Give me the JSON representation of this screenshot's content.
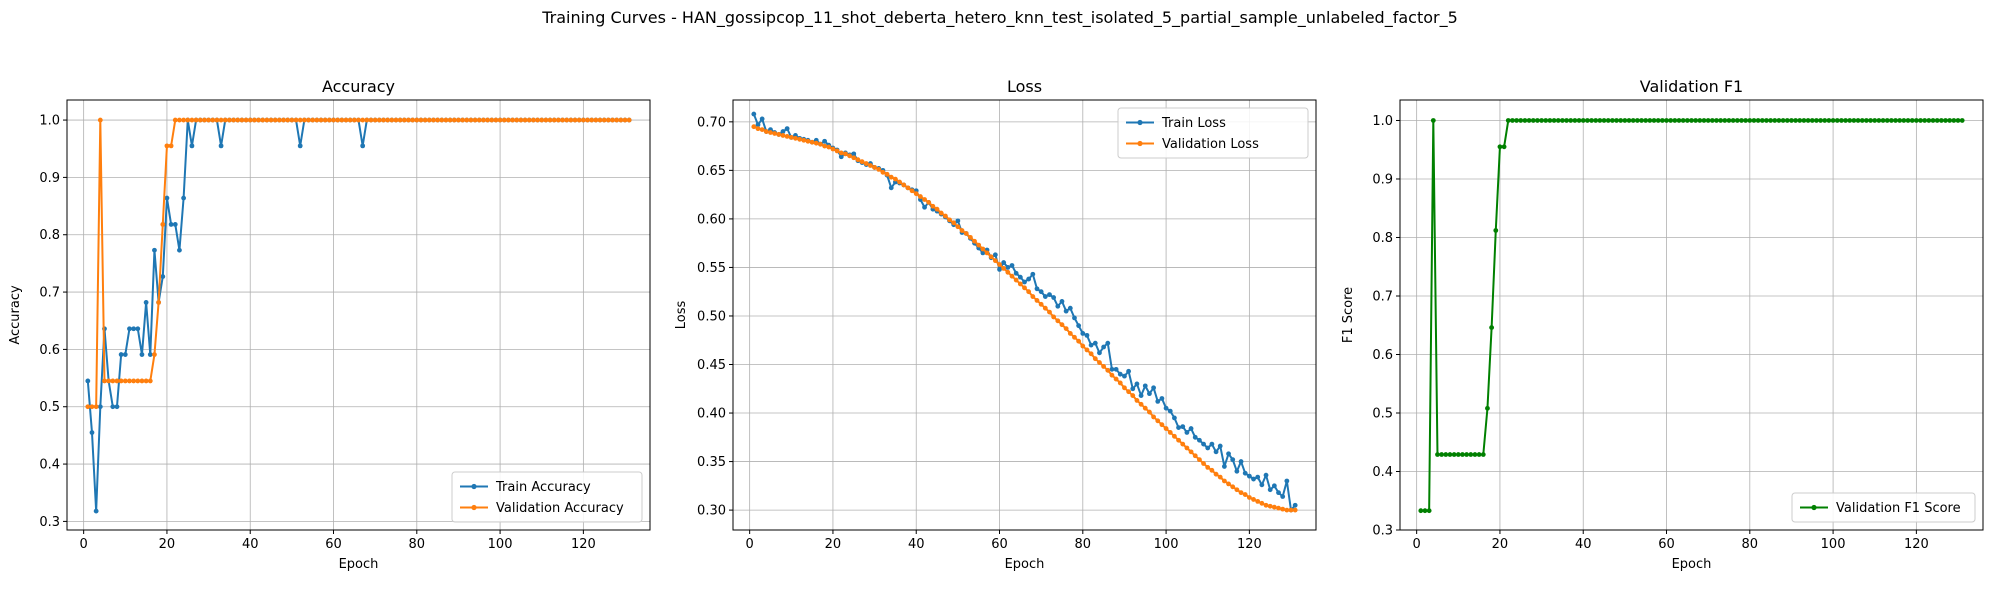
{
  "suptitle": "Training Curves - HAN_gossipcop_11_shot_deberta_hetero_knn_test_isolated_5_partial_sample_unlabeled_factor_5",
  "colors": {
    "blue": "#1f77b4",
    "orange": "#ff7f0e",
    "green": "#008000",
    "grid": "#b0b0b0"
  },
  "chart_data": [
    {
      "type": "line",
      "title": "Accuracy",
      "xlabel": "Epoch",
      "ylabel": "Accuracy",
      "xlim": [
        -4,
        136
      ],
      "ylim": [
        0.285,
        1.035
      ],
      "xticks": [
        0,
        20,
        40,
        60,
        80,
        100,
        120
      ],
      "yticks": [
        0.3,
        0.4,
        0.5,
        0.6,
        0.7,
        0.8,
        0.9,
        1.0
      ],
      "yticklabels": [
        "0.3",
        "0.4",
        "0.5",
        "0.6",
        "0.7",
        "0.8",
        "0.9",
        "1.0"
      ],
      "grid": true,
      "legend_position": "lower right",
      "x": [
        1,
        2,
        3,
        4,
        5,
        6,
        7,
        8,
        9,
        10,
        11,
        12,
        13,
        14,
        15,
        16,
        17,
        18,
        19,
        20,
        21,
        22,
        23,
        24,
        25,
        26,
        27,
        28,
        29,
        30,
        31,
        32,
        33,
        34,
        35,
        36,
        37,
        38,
        39,
        40,
        41,
        42,
        43,
        44,
        45,
        46,
        47,
        48,
        49,
        50,
        51,
        52,
        53,
        54,
        55,
        56,
        57,
        58,
        59,
        60,
        61,
        62,
        63,
        64,
        65,
        66,
        67,
        68,
        69,
        70,
        71,
        72,
        73,
        74,
        75,
        76,
        77,
        78,
        79,
        80,
        81,
        82,
        83,
        84,
        85,
        86,
        87,
        88,
        89,
        90,
        91,
        92,
        93,
        94,
        95,
        96,
        97,
        98,
        99,
        100,
        101,
        102,
        103,
        104,
        105,
        106,
        107,
        108,
        109,
        110,
        111,
        112,
        113,
        114,
        115,
        116,
        117,
        118,
        119,
        120,
        121,
        122,
        123,
        124,
        125,
        126,
        127,
        128,
        129,
        130,
        131
      ],
      "series": [
        {
          "name": "Train Accuracy",
          "color": "#1f77b4",
          "values": [
            0.545,
            0.455,
            0.318,
            0.5,
            0.636,
            0.545,
            0.5,
            0.5,
            0.591,
            0.591,
            0.636,
            0.636,
            0.636,
            0.591,
            0.682,
            0.591,
            0.773,
            0.682,
            0.727,
            0.864,
            0.818,
            0.818,
            0.773,
            0.864,
            1.0,
            0.955,
            1.0,
            1.0,
            1.0,
            1.0,
            1.0,
            1.0,
            0.955,
            1.0,
            1.0,
            1.0,
            1.0,
            1.0,
            1.0,
            1.0,
            1.0,
            1.0,
            1.0,
            1.0,
            1.0,
            1.0,
            1.0,
            1.0,
            1.0,
            1.0,
            1.0,
            0.955,
            1.0,
            1.0,
            1.0,
            1.0,
            1.0,
            1.0,
            1.0,
            1.0,
            1.0,
            1.0,
            1.0,
            1.0,
            1.0,
            1.0,
            0.955,
            1.0,
            1.0,
            1.0,
            1.0,
            1.0,
            1.0,
            1.0,
            1.0,
            1.0,
            1.0,
            1.0,
            1.0,
            1.0,
            1.0,
            1.0,
            1.0,
            1.0,
            1.0,
            1.0,
            1.0,
            1.0,
            1.0,
            1.0,
            1.0,
            1.0,
            1.0,
            1.0,
            1.0,
            1.0,
            1.0,
            1.0,
            1.0,
            1.0,
            1.0,
            1.0,
            1.0,
            1.0,
            1.0,
            1.0,
            1.0,
            1.0,
            1.0,
            1.0,
            1.0,
            1.0,
            1.0,
            1.0,
            1.0,
            1.0,
            1.0,
            1.0,
            1.0,
            1.0,
            1.0,
            1.0,
            1.0,
            1.0,
            1.0,
            1.0,
            1.0,
            1.0,
            1.0,
            1.0,
            1.0
          ]
        },
        {
          "name": "Validation Accuracy",
          "color": "#ff7f0e",
          "values": [
            0.5,
            0.5,
            0.5,
            1.0,
            0.545,
            0.545,
            0.545,
            0.545,
            0.545,
            0.545,
            0.545,
            0.545,
            0.545,
            0.545,
            0.545,
            0.545,
            0.591,
            0.682,
            0.818,
            0.955,
            0.955,
            1.0,
            1.0,
            1.0,
            1.0,
            1.0,
            1.0,
            1.0,
            1.0,
            1.0,
            1.0,
            1.0,
            1.0,
            1.0,
            1.0,
            1.0,
            1.0,
            1.0,
            1.0,
            1.0,
            1.0,
            1.0,
            1.0,
            1.0,
            1.0,
            1.0,
            1.0,
            1.0,
            1.0,
            1.0,
            1.0,
            1.0,
            1.0,
            1.0,
            1.0,
            1.0,
            1.0,
            1.0,
            1.0,
            1.0,
            1.0,
            1.0,
            1.0,
            1.0,
            1.0,
            1.0,
            1.0,
            1.0,
            1.0,
            1.0,
            1.0,
            1.0,
            1.0,
            1.0,
            1.0,
            1.0,
            1.0,
            1.0,
            1.0,
            1.0,
            1.0,
            1.0,
            1.0,
            1.0,
            1.0,
            1.0,
            1.0,
            1.0,
            1.0,
            1.0,
            1.0,
            1.0,
            1.0,
            1.0,
            1.0,
            1.0,
            1.0,
            1.0,
            1.0,
            1.0,
            1.0,
            1.0,
            1.0,
            1.0,
            1.0,
            1.0,
            1.0,
            1.0,
            1.0,
            1.0,
            1.0,
            1.0,
            1.0,
            1.0,
            1.0,
            1.0,
            1.0,
            1.0,
            1.0,
            1.0,
            1.0,
            1.0,
            1.0,
            1.0,
            1.0,
            1.0,
            1.0,
            1.0,
            1.0,
            1.0,
            1.0
          ]
        }
      ]
    },
    {
      "type": "line",
      "title": "Loss",
      "xlabel": "Epoch",
      "ylabel": "Loss",
      "xlim": [
        -4,
        136
      ],
      "ylim": [
        0.2795,
        0.7225
      ],
      "xticks": [
        0,
        20,
        40,
        60,
        80,
        100,
        120
      ],
      "yticks": [
        0.3,
        0.35,
        0.4,
        0.45,
        0.5,
        0.55,
        0.6,
        0.65,
        0.7
      ],
      "yticklabels": [
        "0.30",
        "0.35",
        "0.40",
        "0.45",
        "0.50",
        "0.55",
        "0.60",
        "0.65",
        "0.70"
      ],
      "grid": true,
      "legend_position": "upper right",
      "x": [
        1,
        2,
        3,
        4,
        5,
        6,
        7,
        8,
        9,
        10,
        11,
        12,
        13,
        14,
        15,
        16,
        17,
        18,
        19,
        20,
        21,
        22,
        23,
        24,
        25,
        26,
        27,
        28,
        29,
        30,
        31,
        32,
        33,
        34,
        35,
        36,
        37,
        38,
        39,
        40,
        41,
        42,
        43,
        44,
        45,
        46,
        47,
        48,
        49,
        50,
        51,
        52,
        53,
        54,
        55,
        56,
        57,
        58,
        59,
        60,
        61,
        62,
        63,
        64,
        65,
        66,
        67,
        68,
        69,
        70,
        71,
        72,
        73,
        74,
        75,
        76,
        77,
        78,
        79,
        80,
        81,
        82,
        83,
        84,
        85,
        86,
        87,
        88,
        89,
        90,
        91,
        92,
        93,
        94,
        95,
        96,
        97,
        98,
        99,
        100,
        101,
        102,
        103,
        104,
        105,
        106,
        107,
        108,
        109,
        110,
        111,
        112,
        113,
        114,
        115,
        116,
        117,
        118,
        119,
        120,
        121,
        122,
        123,
        124,
        125,
        126,
        127,
        128,
        129,
        130,
        131
      ],
      "series": [
        {
          "name": "Train Loss",
          "color": "#1f77b4",
          "values": [
            0.708,
            0.697,
            0.703,
            0.69,
            0.692,
            0.689,
            0.687,
            0.69,
            0.693,
            0.684,
            0.686,
            0.683,
            0.682,
            0.681,
            0.679,
            0.681,
            0.677,
            0.68,
            0.676,
            0.673,
            0.671,
            0.664,
            0.668,
            0.666,
            0.667,
            0.66,
            0.658,
            0.656,
            0.657,
            0.653,
            0.652,
            0.65,
            0.645,
            0.632,
            0.638,
            0.637,
            0.635,
            0.632,
            0.63,
            0.629,
            0.62,
            0.612,
            0.617,
            0.61,
            0.608,
            0.605,
            0.602,
            0.598,
            0.594,
            0.598,
            0.586,
            0.585,
            0.58,
            0.575,
            0.57,
            0.565,
            0.568,
            0.56,
            0.563,
            0.548,
            0.555,
            0.55,
            0.552,
            0.544,
            0.54,
            0.535,
            0.538,
            0.543,
            0.528,
            0.525,
            0.52,
            0.522,
            0.519,
            0.51,
            0.515,
            0.505,
            0.508,
            0.498,
            0.49,
            0.482,
            0.48,
            0.47,
            0.472,
            0.462,
            0.468,
            0.472,
            0.445,
            0.445,
            0.44,
            0.438,
            0.443,
            0.425,
            0.43,
            0.418,
            0.428,
            0.42,
            0.426,
            0.412,
            0.415,
            0.405,
            0.402,
            0.395,
            0.385,
            0.386,
            0.38,
            0.384,
            0.375,
            0.372,
            0.368,
            0.364,
            0.368,
            0.36,
            0.366,
            0.345,
            0.358,
            0.352,
            0.34,
            0.35,
            0.338,
            0.335,
            0.332,
            0.334,
            0.326,
            0.336,
            0.321,
            0.325,
            0.318,
            0.314,
            0.33,
            0.3,
            0.305
          ]
        },
        {
          "name": "Validation Loss",
          "color": "#ff7f0e",
          "values": [
            0.695,
            0.693,
            0.692,
            0.69,
            0.689,
            0.688,
            0.687,
            0.686,
            0.685,
            0.684,
            0.683,
            0.682,
            0.681,
            0.68,
            0.679,
            0.678,
            0.677,
            0.675,
            0.674,
            0.672,
            0.67,
            0.668,
            0.667,
            0.665,
            0.663,
            0.661,
            0.659,
            0.657,
            0.655,
            0.653,
            0.651,
            0.648,
            0.646,
            0.643,
            0.641,
            0.638,
            0.635,
            0.632,
            0.629,
            0.626,
            0.623,
            0.62,
            0.617,
            0.613,
            0.61,
            0.606,
            0.603,
            0.599,
            0.596,
            0.592,
            0.588,
            0.585,
            0.581,
            0.577,
            0.573,
            0.569,
            0.565,
            0.561,
            0.557,
            0.553,
            0.549,
            0.545,
            0.541,
            0.537,
            0.533,
            0.529,
            0.525,
            0.52,
            0.516,
            0.512,
            0.508,
            0.504,
            0.499,
            0.495,
            0.491,
            0.487,
            0.482,
            0.478,
            0.474,
            0.469,
            0.465,
            0.461,
            0.456,
            0.452,
            0.448,
            0.444,
            0.439,
            0.435,
            0.431,
            0.426,
            0.422,
            0.418,
            0.413,
            0.409,
            0.405,
            0.401,
            0.396,
            0.392,
            0.388,
            0.384,
            0.38,
            0.376,
            0.372,
            0.368,
            0.364,
            0.36,
            0.356,
            0.352,
            0.348,
            0.344,
            0.341,
            0.337,
            0.334,
            0.33,
            0.327,
            0.324,
            0.321,
            0.318,
            0.316,
            0.313,
            0.311,
            0.309,
            0.307,
            0.305,
            0.304,
            0.303,
            0.302,
            0.301,
            0.3,
            0.3,
            0.3
          ]
        }
      ]
    },
    {
      "type": "line",
      "title": "Validation F1",
      "xlabel": "Epoch",
      "ylabel": "F1 Score",
      "xlim": [
        -4,
        136
      ],
      "ylim": [
        0.3,
        1.035
      ],
      "xticks": [
        0,
        20,
        40,
        60,
        80,
        100,
        120
      ],
      "yticks": [
        0.3,
        0.4,
        0.5,
        0.6,
        0.7,
        0.8,
        0.9,
        1.0
      ],
      "yticklabels": [
        "0.3",
        "0.4",
        "0.5",
        "0.6",
        "0.7",
        "0.8",
        "0.9",
        "1.0"
      ],
      "grid": true,
      "legend_position": "lower right",
      "x": [
        1,
        2,
        3,
        4,
        5,
        6,
        7,
        8,
        9,
        10,
        11,
        12,
        13,
        14,
        15,
        16,
        17,
        18,
        19,
        20,
        21,
        22,
        23,
        24,
        25,
        26,
        27,
        28,
        29,
        30,
        31,
        32,
        33,
        34,
        35,
        36,
        37,
        38,
        39,
        40,
        41,
        42,
        43,
        44,
        45,
        46,
        47,
        48,
        49,
        50,
        51,
        52,
        53,
        54,
        55,
        56,
        57,
        58,
        59,
        60,
        61,
        62,
        63,
        64,
        65,
        66,
        67,
        68,
        69,
        70,
        71,
        72,
        73,
        74,
        75,
        76,
        77,
        78,
        79,
        80,
        81,
        82,
        83,
        84,
        85,
        86,
        87,
        88,
        89,
        90,
        91,
        92,
        93,
        94,
        95,
        96,
        97,
        98,
        99,
        100,
        101,
        102,
        103,
        104,
        105,
        106,
        107,
        108,
        109,
        110,
        111,
        112,
        113,
        114,
        115,
        116,
        117,
        118,
        119,
        120,
        121,
        122,
        123,
        124,
        125,
        126,
        127,
        128,
        129,
        130,
        131
      ],
      "series": [
        {
          "name": "Validation F1 Score",
          "color": "#008000",
          "values": [
            0.333,
            0.333,
            0.333,
            1.0,
            0.429,
            0.429,
            0.429,
            0.429,
            0.429,
            0.429,
            0.429,
            0.429,
            0.429,
            0.429,
            0.429,
            0.429,
            0.508,
            0.646,
            0.812,
            0.955,
            0.955,
            1.0,
            1.0,
            1.0,
            1.0,
            1.0,
            1.0,
            1.0,
            1.0,
            1.0,
            1.0,
            1.0,
            1.0,
            1.0,
            1.0,
            1.0,
            1.0,
            1.0,
            1.0,
            1.0,
            1.0,
            1.0,
            1.0,
            1.0,
            1.0,
            1.0,
            1.0,
            1.0,
            1.0,
            1.0,
            1.0,
            1.0,
            1.0,
            1.0,
            1.0,
            1.0,
            1.0,
            1.0,
            1.0,
            1.0,
            1.0,
            1.0,
            1.0,
            1.0,
            1.0,
            1.0,
            1.0,
            1.0,
            1.0,
            1.0,
            1.0,
            1.0,
            1.0,
            1.0,
            1.0,
            1.0,
            1.0,
            1.0,
            1.0,
            1.0,
            1.0,
            1.0,
            1.0,
            1.0,
            1.0,
            1.0,
            1.0,
            1.0,
            1.0,
            1.0,
            1.0,
            1.0,
            1.0,
            1.0,
            1.0,
            1.0,
            1.0,
            1.0,
            1.0,
            1.0,
            1.0,
            1.0,
            1.0,
            1.0,
            1.0,
            1.0,
            1.0,
            1.0,
            1.0,
            1.0,
            1.0,
            1.0,
            1.0,
            1.0,
            1.0,
            1.0,
            1.0,
            1.0,
            1.0,
            1.0,
            1.0,
            1.0,
            1.0,
            1.0,
            1.0,
            1.0,
            1.0,
            1.0,
            1.0,
            1.0,
            1.0
          ]
        }
      ]
    }
  ]
}
